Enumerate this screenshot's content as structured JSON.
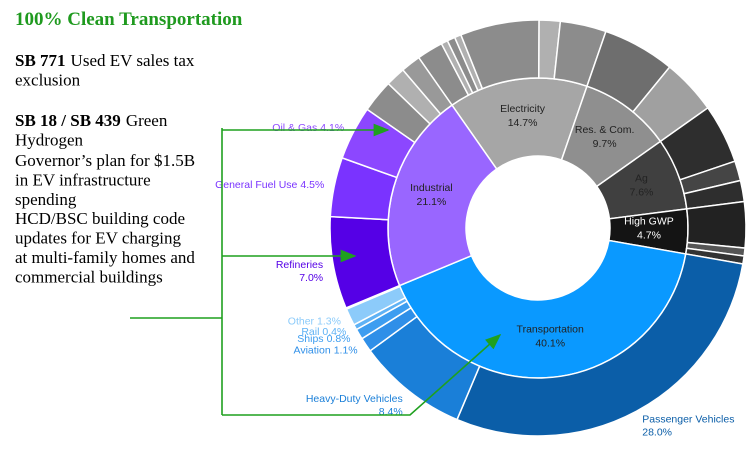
{
  "side_text": {
    "title": "100% Clean Transportation",
    "items": [
      {
        "bold": "SB 771",
        "text": "Used EV sales tax exclusion"
      },
      {
        "bold": "SB 18 / SB 439",
        "text": "Green Hydrogen"
      },
      {
        "text": "Governor’s plan for $1.5B in EV infrastructure spending"
      },
      {
        "text": "HCD/BSC building code updates for EV charging at multi-family homes and commercial buildings"
      }
    ]
  },
  "chart_data": {
    "type": "sunburst",
    "series": [
      {
        "name": "Electricity",
        "value": 14.7,
        "value_label": "14.7%",
        "color": "#a6a6a6",
        "children": [
          {
            "name": null,
            "value": 2.0,
            "color": "#8c8c8c"
          },
          {
            "name": null,
            "value": 0.5,
            "color": "#b0b0b0"
          },
          {
            "name": null,
            "value": 0.6,
            "color": "#8c8c8c"
          },
          {
            "name": null,
            "value": 0.5,
            "color": "#b0b0b0"
          },
          {
            "name": null,
            "value": 6.0,
            "color": "#8c8c8c"
          },
          {
            "name": null,
            "value": 1.6,
            "color": "#b0b0b0"
          },
          {
            "name": null,
            "value": 3.5,
            "color": "#8c8c8c"
          }
        ]
      },
      {
        "name": "Res. & Com.",
        "value": 9.7,
        "value_label": "9.7%",
        "color": "#8f8f8f",
        "children": [
          {
            "name": null,
            "value": 5.5,
            "color": "#6e6e6e"
          },
          {
            "name": null,
            "value": 4.2,
            "color": "#a0a0a0"
          }
        ]
      },
      {
        "name": "Ag",
        "value": 7.6,
        "value_label": "7.6%",
        "color": "#404040",
        "children": [
          {
            "name": null,
            "value": 4.5,
            "color": "#2e2e2e"
          },
          {
            "name": null,
            "value": 1.5,
            "color": "#454545"
          },
          {
            "name": null,
            "value": 1.6,
            "color": "#2e2e2e"
          }
        ]
      },
      {
        "name": "High GWP",
        "value": 4.7,
        "value_label": "4.7%",
        "color": "#141414",
        "children": [
          {
            "name": null,
            "value": 3.5,
            "color": "#222222"
          },
          {
            "name": null,
            "value": 0.6,
            "color": "#555555"
          },
          {
            "name": null,
            "value": 0.6,
            "color": "#333333"
          }
        ]
      },
      {
        "name": "Transportation",
        "value": 40.1,
        "value_label": "40.1%",
        "color": "#0a99ff",
        "children": [
          {
            "name": "Passenger Vehicles",
            "value": 28.0,
            "value_label": "28.0%",
            "color": "#0b5ea8"
          },
          {
            "name": "Heavy-Duty Vehicles",
            "value": 8.4,
            "value_label": "8.4%",
            "color": "#1a7fd8"
          },
          {
            "name": "Aviation",
            "value": 1.1,
            "value_label": "1.1%",
            "color": "#2f8fe8"
          },
          {
            "name": "Ships",
            "value": 0.8,
            "value_label": "0.8%",
            "color": "#3d9df0"
          },
          {
            "name": "Rail",
            "value": 0.4,
            "value_label": "0.4%",
            "color": "#5fb2f5"
          },
          {
            "name": "Other",
            "value": 1.3,
            "value_label": "1.3%",
            "color": "#8ccbfa"
          }
        ]
      },
      {
        "name": "Industrial",
        "value": 21.1,
        "value_label": "21.1%",
        "color": "#9966ff",
        "children": [
          {
            "name": "Refineries",
            "value": 7.0,
            "value_label": "7.0%",
            "color": "#5500e6"
          },
          {
            "name": "General Fuel Use",
            "value": 4.5,
            "value_label": "4.5%",
            "color": "#7a33ff"
          },
          {
            "name": "Oil & Gas",
            "value": 4.1,
            "value_label": "4.1%",
            "color": "#8c47ff"
          },
          {
            "name": null,
            "value": 2.5,
            "color": "#8c8c8c"
          },
          {
            "name": null,
            "value": 1.5,
            "color": "#b0b0b0"
          },
          {
            "name": null,
            "value": 1.5,
            "color": "#999999"
          }
        ]
      }
    ]
  }
}
